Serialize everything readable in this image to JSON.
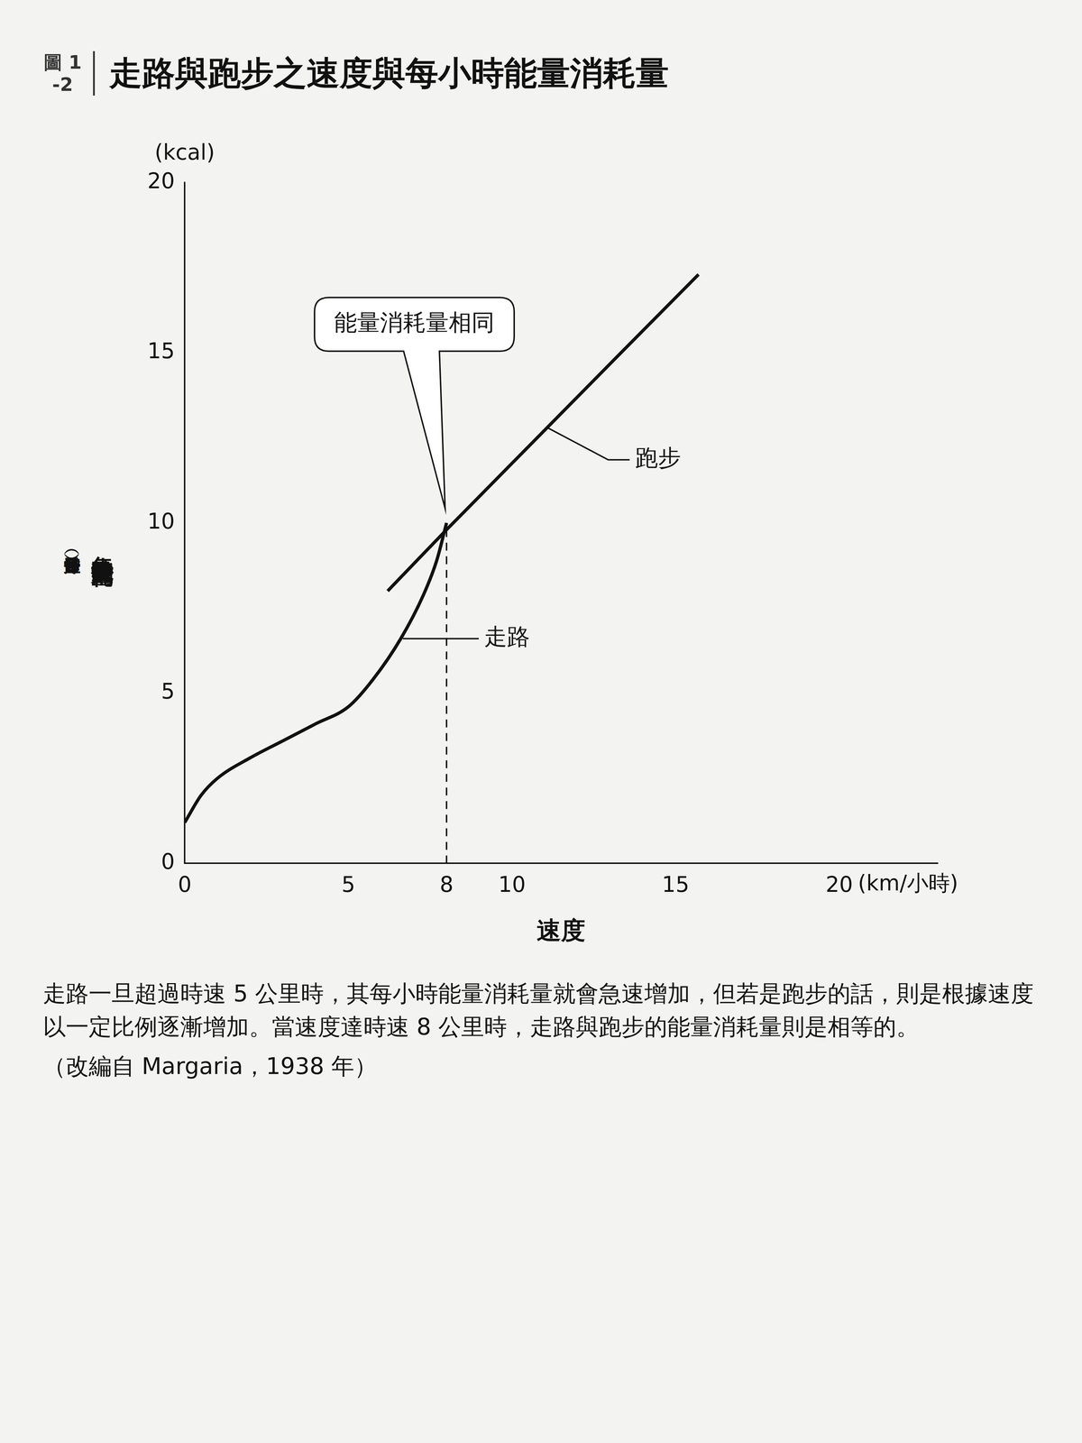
{
  "chart_data": {
    "type": "line",
    "figure_label": "圖 1-2",
    "title": "走路與跑步之速度與每小時能量消耗量",
    "x_label": "速度",
    "x_unit": "(km/小時)",
    "y_label": "每小時能量消耗量",
    "y_sublabel": "（每公斤體重）",
    "y_unit": "(kcal)",
    "xlim": [
      0,
      23
    ],
    "xticks": [
      0,
      5,
      8,
      10,
      15,
      20
    ],
    "ylim": [
      0,
      20
    ],
    "yticks": [
      0,
      5,
      10,
      15,
      20
    ],
    "grid": false,
    "series": [
      {
        "name": "跑步",
        "color": "#111111",
        "x": [
          6.2,
          8,
          15.7
        ],
        "values": [
          8.0,
          9.8,
          17.3
        ]
      },
      {
        "name": "走路",
        "color": "#111111",
        "x": [
          0,
          0.5,
          1,
          2,
          3,
          4,
          5,
          5.75,
          6.6,
          7.3,
          7.7,
          8
        ],
        "values": [
          1.2,
          2.0,
          2.5,
          3.1,
          3.6,
          4.1,
          4.6,
          5.4,
          6.6,
          7.9,
          8.9,
          10
        ]
      }
    ],
    "annotations": [
      {
        "text": "能量消耗量相同",
        "x": 8,
        "y": 10
      }
    ],
    "caption": "走路一旦超過時速 5 公里時，其每小時能量消耗量就會急速增加，但若是跑步的話，則是根據速度以一定比例逐漸增加。當速度達時速 8 公里時，走路與跑步的能量消耗量則是相等的。",
    "source": "（改編自 Margaria，1938 年）"
  }
}
